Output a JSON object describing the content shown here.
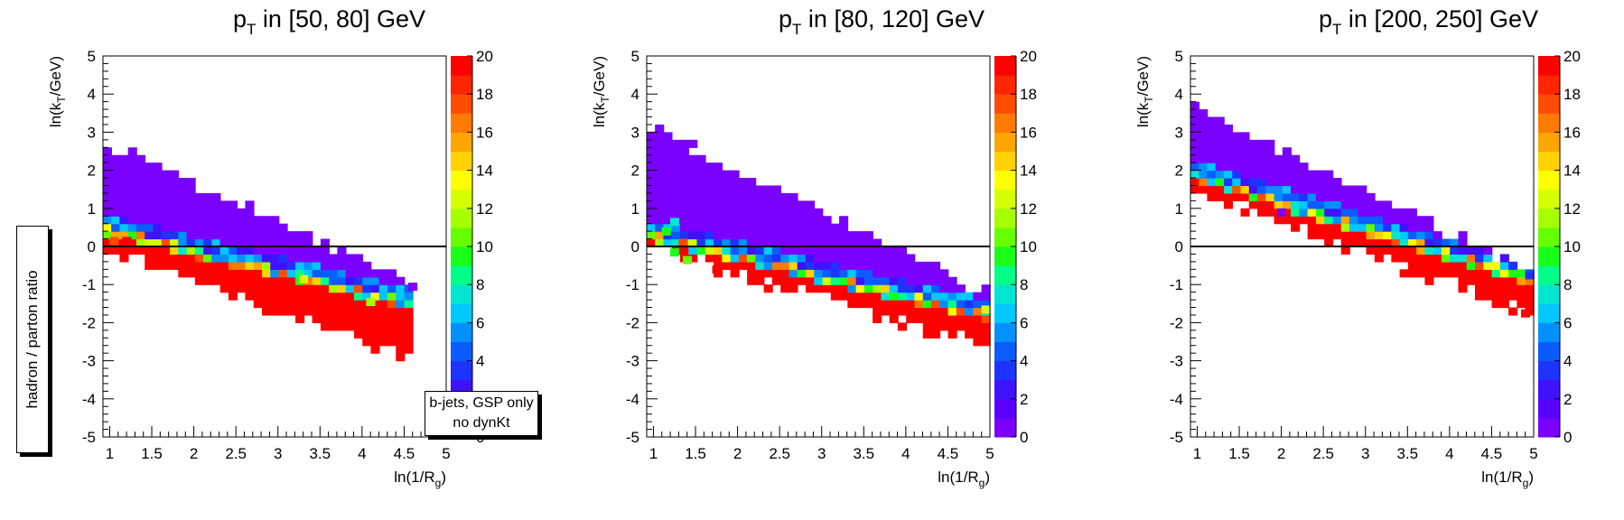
{
  "side_label": "hadron / parton ratio",
  "note": {
    "line1": "b-jets, GSP only",
    "line2": "no dynKt"
  },
  "colorbar_ticks": [
    "0",
    "2",
    "4",
    "6",
    "8",
    "10",
    "12",
    "14",
    "16",
    "18",
    "20"
  ],
  "colors": {
    "palette": [
      "#7a00ff",
      "#5a00ff",
      "#3f12ff",
      "#1f33ff",
      "#0a5cff",
      "#0091ff",
      "#00c8ff",
      "#00e6d0",
      "#00ff88",
      "#1aff1a",
      "#66ff00",
      "#a6ff00",
      "#d6ff00",
      "#ffff00",
      "#ffd200",
      "#ffa500",
      "#ff7a00",
      "#ff4c00",
      "#ff2600",
      "#ff0000"
    ]
  },
  "chart_data": [
    {
      "type": "heatmap",
      "title_main": "p",
      "title_sub": "T",
      "title_rest": " in [50, 80] GeV",
      "xlabel": "ln(1/R",
      "xlabel_sub": "g",
      "xlabel_end": ")",
      "ylabel": "ln(k",
      "ylabel_sub": "T",
      "ylabel_end": "/GeV)",
      "xlim": [
        0.92,
        5.0
      ],
      "ylim": [
        -5,
        5
      ],
      "zlim": [
        0,
        20
      ],
      "xticks": [
        "1",
        "1.5",
        "2",
        "2.5",
        "3",
        "3.5",
        "4",
        "4.5",
        "5"
      ],
      "yticks": [
        "-5",
        "-4",
        "-3",
        "-2",
        "-1",
        "0",
        "1",
        "2",
        "3",
        "4",
        "5"
      ],
      "reference_line_y": 0,
      "band": {
        "x_start": 0.92,
        "x_end": 4.6,
        "top_start": 2.75,
        "top_end": -1.0,
        "div_start": 0.55,
        "div_end": -1.4,
        "bot_start": 0.0,
        "bot_end": -3.0
      },
      "highlights": [
        {
          "x": 1.05,
          "y": 0.15,
          "v": 17
        },
        {
          "x": 1.2,
          "y": 0.15,
          "v": 20
        },
        {
          "x": 3.3,
          "y": -0.85,
          "v": 12
        },
        {
          "x": 4.1,
          "y": -1.45,
          "v": 11
        },
        {
          "x": 4.6,
          "y": -1.05,
          "v": 0
        }
      ]
    },
    {
      "type": "heatmap",
      "title_main": "p",
      "title_sub": "T",
      "title_rest": " in [80, 120] GeV",
      "xlabel": "ln(1/R",
      "xlabel_sub": "g",
      "xlabel_end": ")",
      "ylabel": "ln(k",
      "ylabel_sub": "T",
      "ylabel_end": "/GeV)",
      "xlim": [
        0.92,
        5.0
      ],
      "ylim": [
        -5,
        5
      ],
      "zlim": [
        0,
        20
      ],
      "xticks": [
        "1",
        "1.5",
        "2",
        "2.5",
        "3",
        "3.5",
        "4",
        "4.5",
        "5"
      ],
      "yticks": [
        "-5",
        "-4",
        "-3",
        "-2",
        "-1",
        "0",
        "1",
        "2",
        "3",
        "4",
        "5"
      ],
      "reference_line_y": 0,
      "band": {
        "x_start": 0.92,
        "x_end": 5.0,
        "top_start": 3.2,
        "top_end": -1.3,
        "div_start": 0.4,
        "div_end": -1.7,
        "bot_start": 0.0,
        "bot_end": -2.7
      },
      "highlights": [
        {
          "x": 1.15,
          "y": 0.4,
          "v": 9
        },
        {
          "x": 1.25,
          "y": 0.65,
          "v": 7
        },
        {
          "x": 1.35,
          "y": 0.1,
          "v": 17
        },
        {
          "x": 1.25,
          "y": -0.15,
          "v": 9
        },
        {
          "x": 1.4,
          "y": -0.35,
          "v": 10
        },
        {
          "x": 1.75,
          "y": -0.6,
          "v": 20
        },
        {
          "x": 4.95,
          "y": -1.65,
          "v": 12
        }
      ]
    },
    {
      "type": "heatmap",
      "title_main": "p",
      "title_sub": "T",
      "title_rest": " in [200, 250] GeV",
      "xlabel": "ln(1/R",
      "xlabel_sub": "g",
      "xlabel_end": ")",
      "ylabel": "ln(k",
      "ylabel_sub": "T",
      "ylabel_end": "/GeV)",
      "xlim": [
        0.92,
        5.0
      ],
      "ylim": [
        -5,
        5
      ],
      "zlim": [
        0,
        20
      ],
      "xticks": [
        "1",
        "1.5",
        "2",
        "2.5",
        "3",
        "3.5",
        "4",
        "4.5",
        "5"
      ],
      "yticks": [
        "-5",
        "-4",
        "-3",
        "-2",
        "-1",
        "0",
        "1",
        "2",
        "3",
        "4",
        "5"
      ],
      "reference_line_y": 0,
      "band": {
        "x_start": 0.92,
        "x_end": 5.0,
        "top_start": 3.7,
        "top_end": -0.7,
        "div_start": 2.0,
        "div_end": -0.8,
        "bot_start": 1.5,
        "bot_end": -1.8
      },
      "highlights": [
        {
          "x": 2.0,
          "y": 0.9,
          "v": 0
        },
        {
          "x": 4.9,
          "y": -1.75,
          "v": 20
        },
        {
          "x": 4.95,
          "y": -0.75,
          "v": 3
        }
      ]
    }
  ]
}
